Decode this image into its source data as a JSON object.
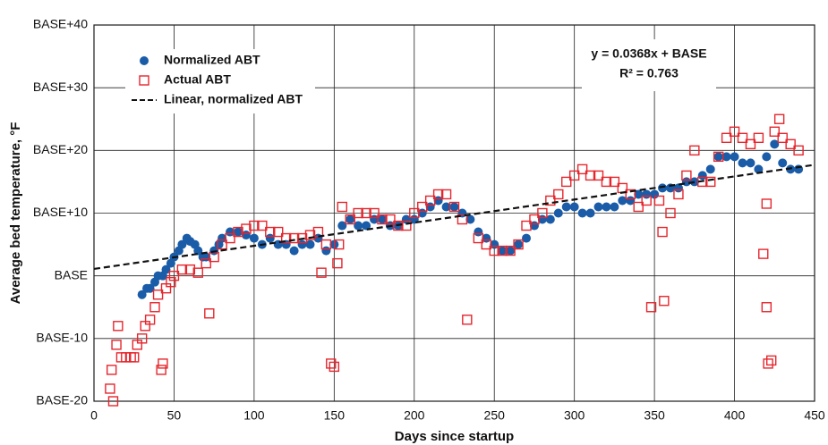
{
  "chart_data": {
    "type": "scatter",
    "x_label": "Days since startup",
    "y_label": "Average bed temperature, °F",
    "annotations": [
      "y = 0.0368x + BASE",
      "R² = 0.763"
    ],
    "xlim": [
      0,
      450
    ],
    "xticks": [
      0,
      50,
      100,
      150,
      200,
      250,
      300,
      350,
      400,
      450
    ],
    "ylim": [
      -20,
      40
    ],
    "yticks": [
      {
        "value": -20,
        "label": "BASE-20"
      },
      {
        "value": -10,
        "label": "BASE-10"
      },
      {
        "value": 0,
        "label": "BASE"
      },
      {
        "value": 10,
        "label": "BASE+10"
      },
      {
        "value": 20,
        "label": "BASE+20"
      },
      {
        "value": 30,
        "label": "BASE+30"
      },
      {
        "value": 40,
        "label": "BASE+40"
      }
    ],
    "grid": true,
    "legend": "top-left",
    "series": [
      {
        "name": "Normalized ABT",
        "color": "#1a5ca8",
        "marker": "circle",
        "x": [
          30,
          33,
          35,
          38,
          40,
          43,
          45,
          48,
          50,
          53,
          55,
          58,
          60,
          63,
          65,
          68,
          70,
          75,
          78,
          80,
          85,
          90,
          95,
          100,
          105,
          110,
          115,
          120,
          125,
          130,
          135,
          140,
          145,
          150,
          155,
          160,
          165,
          170,
          175,
          180,
          185,
          190,
          195,
          200,
          205,
          210,
          215,
          220,
          225,
          230,
          235,
          240,
          245,
          250,
          255,
          260,
          265,
          270,
          275,
          280,
          285,
          290,
          295,
          300,
          305,
          310,
          315,
          320,
          325,
          330,
          335,
          340,
          345,
          350,
          355,
          360,
          365,
          370,
          375,
          380,
          385,
          390,
          395,
          400,
          405,
          410,
          415,
          420,
          425,
          430,
          435,
          440
        ],
        "values": [
          -3,
          -2,
          -2,
          -1,
          0,
          0,
          1,
          2,
          3,
          4,
          5,
          6,
          5.5,
          5,
          4,
          3,
          3,
          4,
          5,
          6,
          7,
          7,
          6.5,
          6,
          5,
          6,
          5,
          5,
          4,
          5,
          5,
          6,
          4,
          5,
          8,
          9,
          8,
          8,
          9,
          9,
          8,
          8,
          9,
          9,
          10,
          11,
          12,
          11,
          11,
          10,
          9,
          7,
          6,
          5,
          4,
          4,
          5,
          6,
          8,
          9,
          9,
          10,
          11,
          11,
          10,
          10,
          11,
          11,
          11,
          12,
          12,
          13,
          13,
          13,
          14,
          14,
          14,
          15,
          15,
          16,
          17,
          19,
          19,
          19,
          18,
          18,
          17,
          19,
          21,
          18,
          17,
          17
        ]
      },
      {
        "name": "Actual ABT",
        "color": "#e5262d",
        "marker": "square",
        "x": [
          10,
          11,
          12,
          14,
          15,
          17,
          20,
          23,
          25,
          27,
          30,
          32,
          35,
          38,
          40,
          42,
          43,
          45,
          48,
          50,
          55,
          60,
          65,
          70,
          72,
          75,
          80,
          85,
          90,
          95,
          100,
          105,
          110,
          115,
          120,
          125,
          130,
          135,
          140,
          142,
          145,
          148,
          150,
          152,
          153,
          155,
          160,
          165,
          170,
          175,
          180,
          185,
          190,
          195,
          200,
          205,
          210,
          215,
          220,
          225,
          230,
          233,
          240,
          245,
          250,
          255,
          260,
          265,
          270,
          275,
          280,
          285,
          290,
          295,
          300,
          305,
          310,
          315,
          320,
          325,
          330,
          335,
          340,
          345,
          348,
          353,
          355,
          356,
          360,
          365,
          370,
          375,
          380,
          385,
          390,
          395,
          400,
          405,
          410,
          415,
          418,
          420,
          420,
          421,
          423,
          425,
          428,
          430,
          435,
          440
        ],
        "values": [
          -18,
          -15,
          -20,
          -11,
          -8,
          -13,
          -13,
          -13,
          -13,
          -11,
          -10,
          -8,
          -7,
          -5,
          -3,
          -15,
          -14,
          -2,
          -1,
          0,
          1,
          1,
          0.5,
          2,
          -6,
          3,
          5,
          6,
          7,
          7.5,
          8,
          8,
          7,
          7,
          6,
          6,
          6,
          6.5,
          7,
          0.5,
          5,
          -14,
          -14.5,
          2,
          5,
          11,
          9,
          10,
          10,
          10,
          9,
          9,
          8,
          8,
          10,
          11,
          12,
          13,
          13,
          11,
          9,
          -7,
          6,
          5,
          4,
          4,
          4,
          5,
          8,
          9,
          10,
          12,
          13,
          15,
          16,
          17,
          16,
          16,
          15,
          15,
          14,
          13,
          11,
          12,
          -5,
          12,
          7,
          -4,
          10,
          13,
          16,
          20,
          15,
          15,
          19,
          22,
          23,
          22,
          21,
          22,
          3.5,
          11.5,
          -5,
          -14,
          -13.5,
          23,
          25,
          22,
          21,
          20
        ]
      },
      {
        "name": "Linear, normalized ABT",
        "color": "#111111",
        "marker": "dashed-line",
        "x": [
          0,
          450
        ],
        "values": [
          1.1,
          17.7
        ]
      }
    ]
  }
}
